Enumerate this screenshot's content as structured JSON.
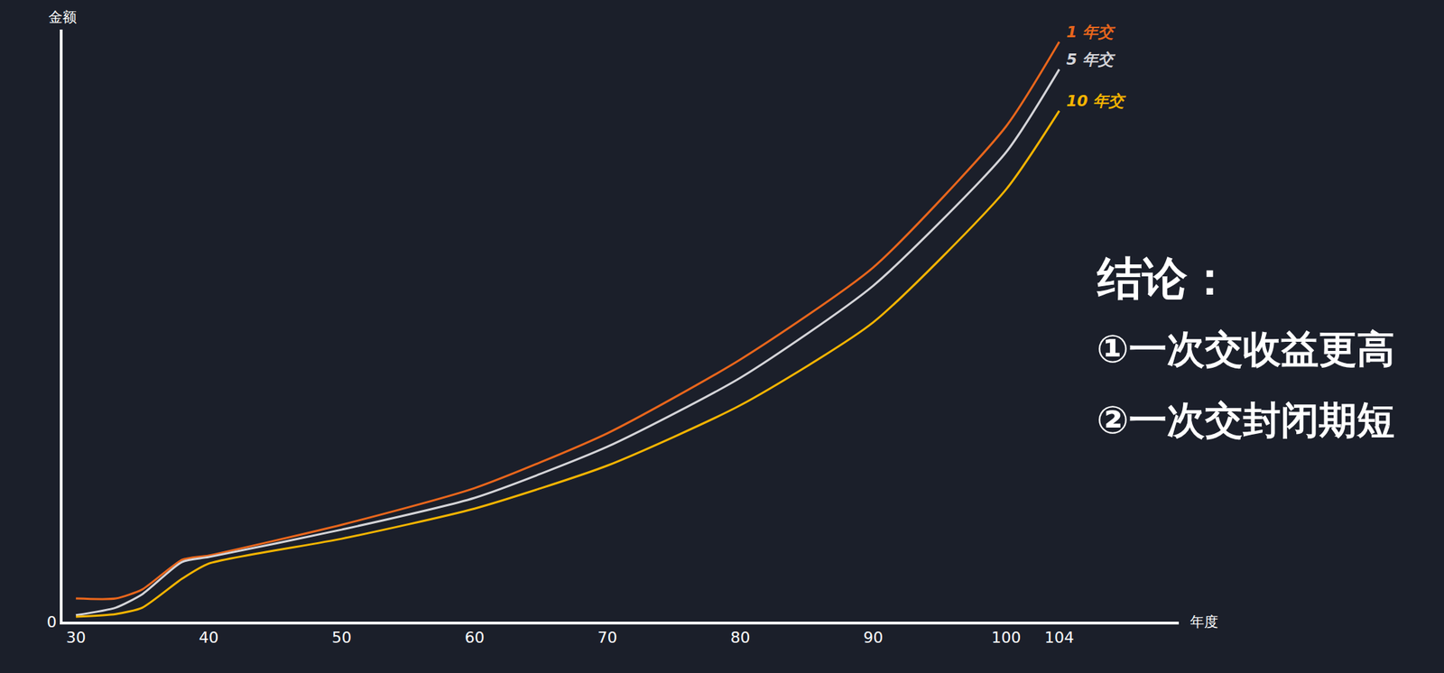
{
  "chart_data": {
    "type": "line",
    "x_label": "年度",
    "y_label": "金额",
    "x": [
      30,
      33,
      35,
      38,
      40,
      50,
      60,
      70,
      80,
      90,
      100,
      104
    ],
    "series": [
      {
        "name": "1 年交",
        "color": "#e8661c",
        "values": [
          4.3,
          4.3,
          6,
          11.5,
          12.3,
          18,
          24.8,
          35,
          48.7,
          65.8,
          92,
          107.7
        ]
      },
      {
        "name": "5 年交",
        "color": "#d4d4d8",
        "values": [
          1.2,
          2.6,
          5.1,
          11.1,
          12,
          17.1,
          23,
          32.5,
          45.3,
          62.4,
          87.2,
          102.6
        ]
      },
      {
        "name": "10 年交",
        "color": "#f5b400",
        "values": [
          0.9,
          1.4,
          2.6,
          8,
          10.8,
          15.4,
          21,
          29,
          40.2,
          55.6,
          80.3,
          94.9
        ]
      }
    ],
    "xlim": [
      29,
      113
    ],
    "xticks": [
      30,
      40,
      50,
      60,
      70,
      80,
      90,
      100,
      104
    ],
    "ylim": [
      0,
      110
    ],
    "yticks": [
      0
    ],
    "grid": false,
    "annotations": [
      "结论：",
      "①一次交收益更高",
      "②一次交封闭期短"
    ]
  }
}
